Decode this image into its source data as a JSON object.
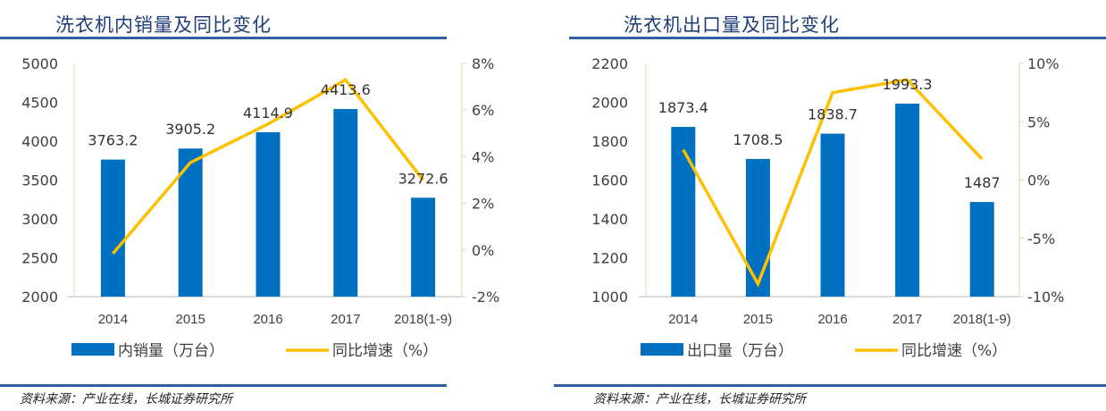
{
  "colors": {
    "bar": "#0070c0",
    "line": "#ffc000",
    "title": "#1f3d7a",
    "rule": "#2e5f9e",
    "axis_right": "#d4e2bd",
    "axis_base": "#d0d0d0"
  },
  "chart_data": [
    {
      "type": "bar",
      "title": "洗衣机内销量及同比变化",
      "categories": [
        "2014",
        "2015",
        "2016",
        "2017",
        "2018(1-9)"
      ],
      "series": [
        {
          "name": "内销量（万台）",
          "type": "bar",
          "axis": "left",
          "values": [
            3763.2,
            3905.2,
            4114.9,
            4413.6,
            3272.6
          ],
          "labels": [
            "3763.2",
            "3905.2",
            "4114.9",
            "4413.6",
            "3272.6"
          ]
        },
        {
          "name": "同比增速（%）",
          "type": "line",
          "axis": "right",
          "values": [
            -0.15,
            3.75,
            5.4,
            7.3,
            3.0
          ]
        }
      ],
      "ylim_left": [
        2000,
        5000
      ],
      "yticks_left": [
        2000,
        2500,
        3000,
        3500,
        4000,
        4500,
        5000
      ],
      "ytick_labels_left": [
        "2000",
        "2500",
        "3000",
        "3500",
        "4000",
        "4500",
        "5000"
      ],
      "ylim_right": [
        -2,
        8
      ],
      "yticks_right": [
        -2,
        0,
        2,
        4,
        6,
        8
      ],
      "ytick_labels_right": [
        "-2%",
        "0%",
        "2%",
        "4%",
        "6%",
        "8%"
      ],
      "grid": false,
      "legend": "bottom",
      "legend_entries": [
        "内销量（万台）",
        "同比增速（%）"
      ],
      "source": "资料来源：产业在线，长城证券研究所"
    },
    {
      "type": "bar",
      "title": "洗衣机出口量及同比变化",
      "categories": [
        "2014",
        "2015",
        "2016",
        "2017",
        "2018(1-9)"
      ],
      "series": [
        {
          "name": "出口量（万台）",
          "type": "bar",
          "axis": "left",
          "values": [
            1873.4,
            1708.5,
            1838.7,
            1993.3,
            1487
          ],
          "labels": [
            "1873.4",
            "1708.5",
            "1838.7",
            "1993.3",
            "1487"
          ]
        },
        {
          "name": "同比增速（%）",
          "type": "line",
          "axis": "right",
          "values": [
            2.6,
            -8.9,
            7.5,
            8.6,
            1.8
          ]
        }
      ],
      "ylim_left": [
        1000,
        2200
      ],
      "yticks_left": [
        1000,
        1200,
        1400,
        1600,
        1800,
        2000,
        2200
      ],
      "ytick_labels_left": [
        "1000",
        "1200",
        "1400",
        "1600",
        "1800",
        "2000",
        "2200"
      ],
      "ylim_right": [
        -10,
        10
      ],
      "yticks_right": [
        -10,
        -5,
        0,
        5,
        10
      ],
      "ytick_labels_right": [
        "-10%",
        "-5%",
        "0%",
        "5%",
        "10%"
      ],
      "grid": false,
      "legend": "bottom",
      "legend_entries": [
        "出口量（万台）",
        "同比增速（%）"
      ],
      "source": "资料来源：产业在线，长城证券研究所"
    }
  ]
}
